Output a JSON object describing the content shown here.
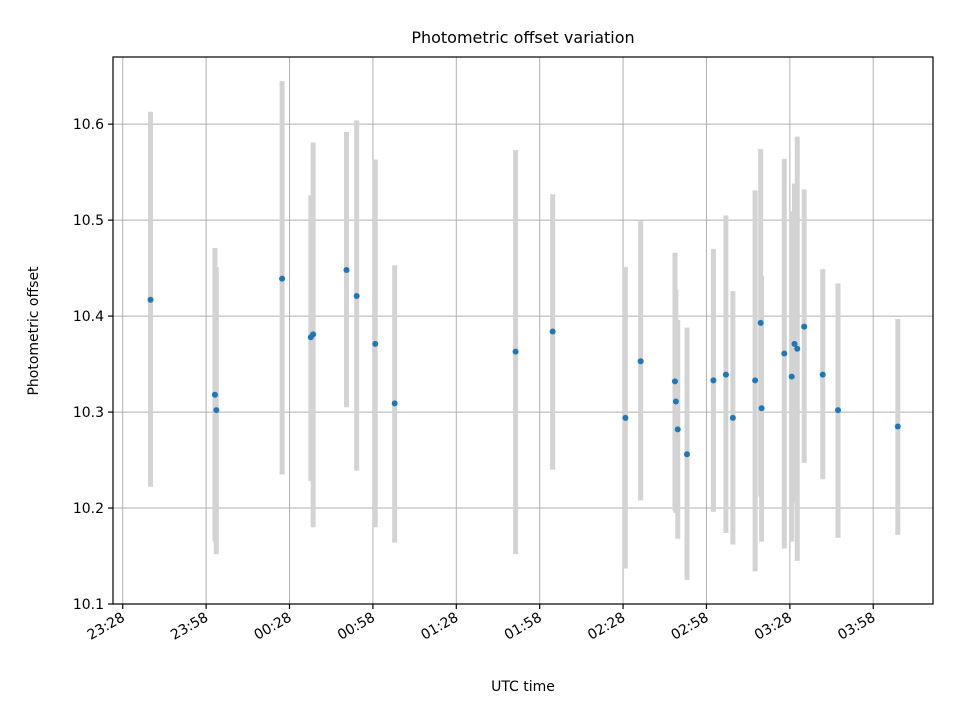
{
  "chart_data": {
    "type": "scatter",
    "title": "Photometric offset variation",
    "xlabel": "UTC time",
    "ylabel": "Photometric offset",
    "x_tick_labels": [
      "23:28",
      "23:58",
      "00:28",
      "00:58",
      "01:28",
      "01:58",
      "02:28",
      "02:58",
      "03:28",
      "03:58"
    ],
    "x_tick_times": [
      "2024-01-01T23:28",
      "2024-01-01T23:58",
      "2024-01-02T00:28",
      "2024-01-02T00:58",
      "2024-01-02T01:28",
      "2024-01-02T01:58",
      "2024-01-02T02:28",
      "2024-01-02T02:58",
      "2024-01-02T03:28",
      "2024-01-02T03:58"
    ],
    "xlim": [
      "2024-01-01T23:24:30",
      "2024-01-02T04:19:30"
    ],
    "ylim": [
      10.1,
      10.67
    ],
    "y_ticks": [
      10.1,
      10.2,
      10.3,
      10.4,
      10.5,
      10.6
    ],
    "y_tick_labels": [
      "10.1",
      "10.2",
      "10.3",
      "10.4",
      "10.5",
      "10.6"
    ],
    "grid": true,
    "point_color": "#1f77b4",
    "errorbar_color": "#d3d3d3",
    "points": [
      {
        "t": "2024-01-01T23:38:00",
        "y": 10.417,
        "lo": 10.222,
        "hi": 10.613
      },
      {
        "t": "2024-01-02T00:01:10",
        "y": 10.318,
        "lo": 10.165,
        "hi": 10.471
      },
      {
        "t": "2024-01-02T00:01:40",
        "y": 10.302,
        "lo": 10.152,
        "hi": 10.451
      },
      {
        "t": "2024-01-02T00:25:20",
        "y": 10.439,
        "lo": 10.235,
        "hi": 10.645
      },
      {
        "t": "2024-01-02T00:35:40",
        "y": 10.378,
        "lo": 10.228,
        "hi": 10.526
      },
      {
        "t": "2024-01-02T00:36:30",
        "y": 10.381,
        "lo": 10.18,
        "hi": 10.581
      },
      {
        "t": "2024-01-02T00:48:30",
        "y": 10.448,
        "lo": 10.305,
        "hi": 10.592
      },
      {
        "t": "2024-01-02T00:52:10",
        "y": 10.421,
        "lo": 10.239,
        "hi": 10.604
      },
      {
        "t": "2024-01-02T00:58:50",
        "y": 10.371,
        "lo": 10.18,
        "hi": 10.563
      },
      {
        "t": "2024-01-02T01:05:50",
        "y": 10.309,
        "lo": 10.164,
        "hi": 10.453
      },
      {
        "t": "2024-01-02T01:49:20",
        "y": 10.363,
        "lo": 10.152,
        "hi": 10.573
      },
      {
        "t": "2024-01-02T02:02:40",
        "y": 10.384,
        "lo": 10.24,
        "hi": 10.527
      },
      {
        "t": "2024-01-02T02:28:50",
        "y": 10.294,
        "lo": 10.137,
        "hi": 10.451
      },
      {
        "t": "2024-01-02T02:34:20",
        "y": 10.353,
        "lo": 10.208,
        "hi": 10.499
      },
      {
        "t": "2024-01-02T02:46:40",
        "y": 10.332,
        "lo": 10.197,
        "hi": 10.466
      },
      {
        "t": "2024-01-02T02:47:00",
        "y": 10.311,
        "lo": 10.195,
        "hi": 10.428
      },
      {
        "t": "2024-01-02T02:47:40",
        "y": 10.282,
        "lo": 10.168,
        "hi": 10.396
      },
      {
        "t": "2024-01-02T02:51:00",
        "y": 10.256,
        "lo": 10.125,
        "hi": 10.388
      },
      {
        "t": "2024-01-02T03:00:30",
        "y": 10.333,
        "lo": 10.196,
        "hi": 10.47
      },
      {
        "t": "2024-01-02T03:05:00",
        "y": 10.339,
        "lo": 10.174,
        "hi": 10.505
      },
      {
        "t": "2024-01-02T03:07:30",
        "y": 10.294,
        "lo": 10.162,
        "hi": 10.426
      },
      {
        "t": "2024-01-02T03:15:30",
        "y": 10.333,
        "lo": 10.134,
        "hi": 10.531
      },
      {
        "t": "2024-01-02T03:17:30",
        "y": 10.393,
        "lo": 10.212,
        "hi": 10.574
      },
      {
        "t": "2024-01-02T03:17:50",
        "y": 10.304,
        "lo": 10.165,
        "hi": 10.442
      },
      {
        "t": "2024-01-02T03:26:00",
        "y": 10.361,
        "lo": 10.158,
        "hi": 10.564
      },
      {
        "t": "2024-01-02T03:28:40",
        "y": 10.337,
        "lo": 10.165,
        "hi": 10.509
      },
      {
        "t": "2024-01-02T03:29:40",
        "y": 10.371,
        "lo": 10.205,
        "hi": 10.538
      },
      {
        "t": "2024-01-02T03:30:40",
        "y": 10.366,
        "lo": 10.145,
        "hi": 10.587
      },
      {
        "t": "2024-01-02T03:33:10",
        "y": 10.389,
        "lo": 10.247,
        "hi": 10.532
      },
      {
        "t": "2024-01-02T03:39:50",
        "y": 10.339,
        "lo": 10.23,
        "hi": 10.449
      },
      {
        "t": "2024-01-02T03:45:20",
        "y": 10.302,
        "lo": 10.169,
        "hi": 10.434
      },
      {
        "t": "2024-01-02T04:06:50",
        "y": 10.285,
        "lo": 10.172,
        "hi": 10.397
      }
    ]
  }
}
